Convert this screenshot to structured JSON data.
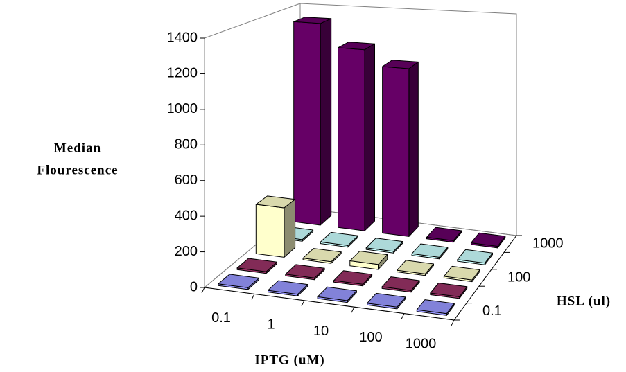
{
  "chart_data": {
    "type": "bar3d",
    "y_label": [
      "Median",
      "Flourescence"
    ],
    "x_label": "IPTG (uM)",
    "z_label": "HSL (ul)",
    "categories": [
      "0.1",
      "1",
      "10",
      "100",
      "1000"
    ],
    "series": [
      {
        "name": "0.1",
        "color": "#9999ff",
        "values": [
          10,
          10,
          10,
          10,
          10
        ]
      },
      {
        "name": null,
        "color": "#993366",
        "values": [
          10,
          10,
          10,
          10,
          10
        ]
      },
      {
        "name": "100",
        "color": "#ffffcc",
        "values": [
          300,
          10,
          30,
          10,
          10
        ]
      },
      {
        "name": null,
        "color": "#ccffff",
        "values": [
          10,
          10,
          10,
          10,
          10
        ]
      },
      {
        "name": "1000",
        "color": "#660066",
        "values": [
          1320,
          1170,
          1070,
          10,
          10
        ]
      }
    ],
    "ylim": [
      0,
      1400
    ],
    "yticks": [
      0,
      200,
      400,
      600,
      800,
      1000,
      1200,
      1400
    ]
  }
}
